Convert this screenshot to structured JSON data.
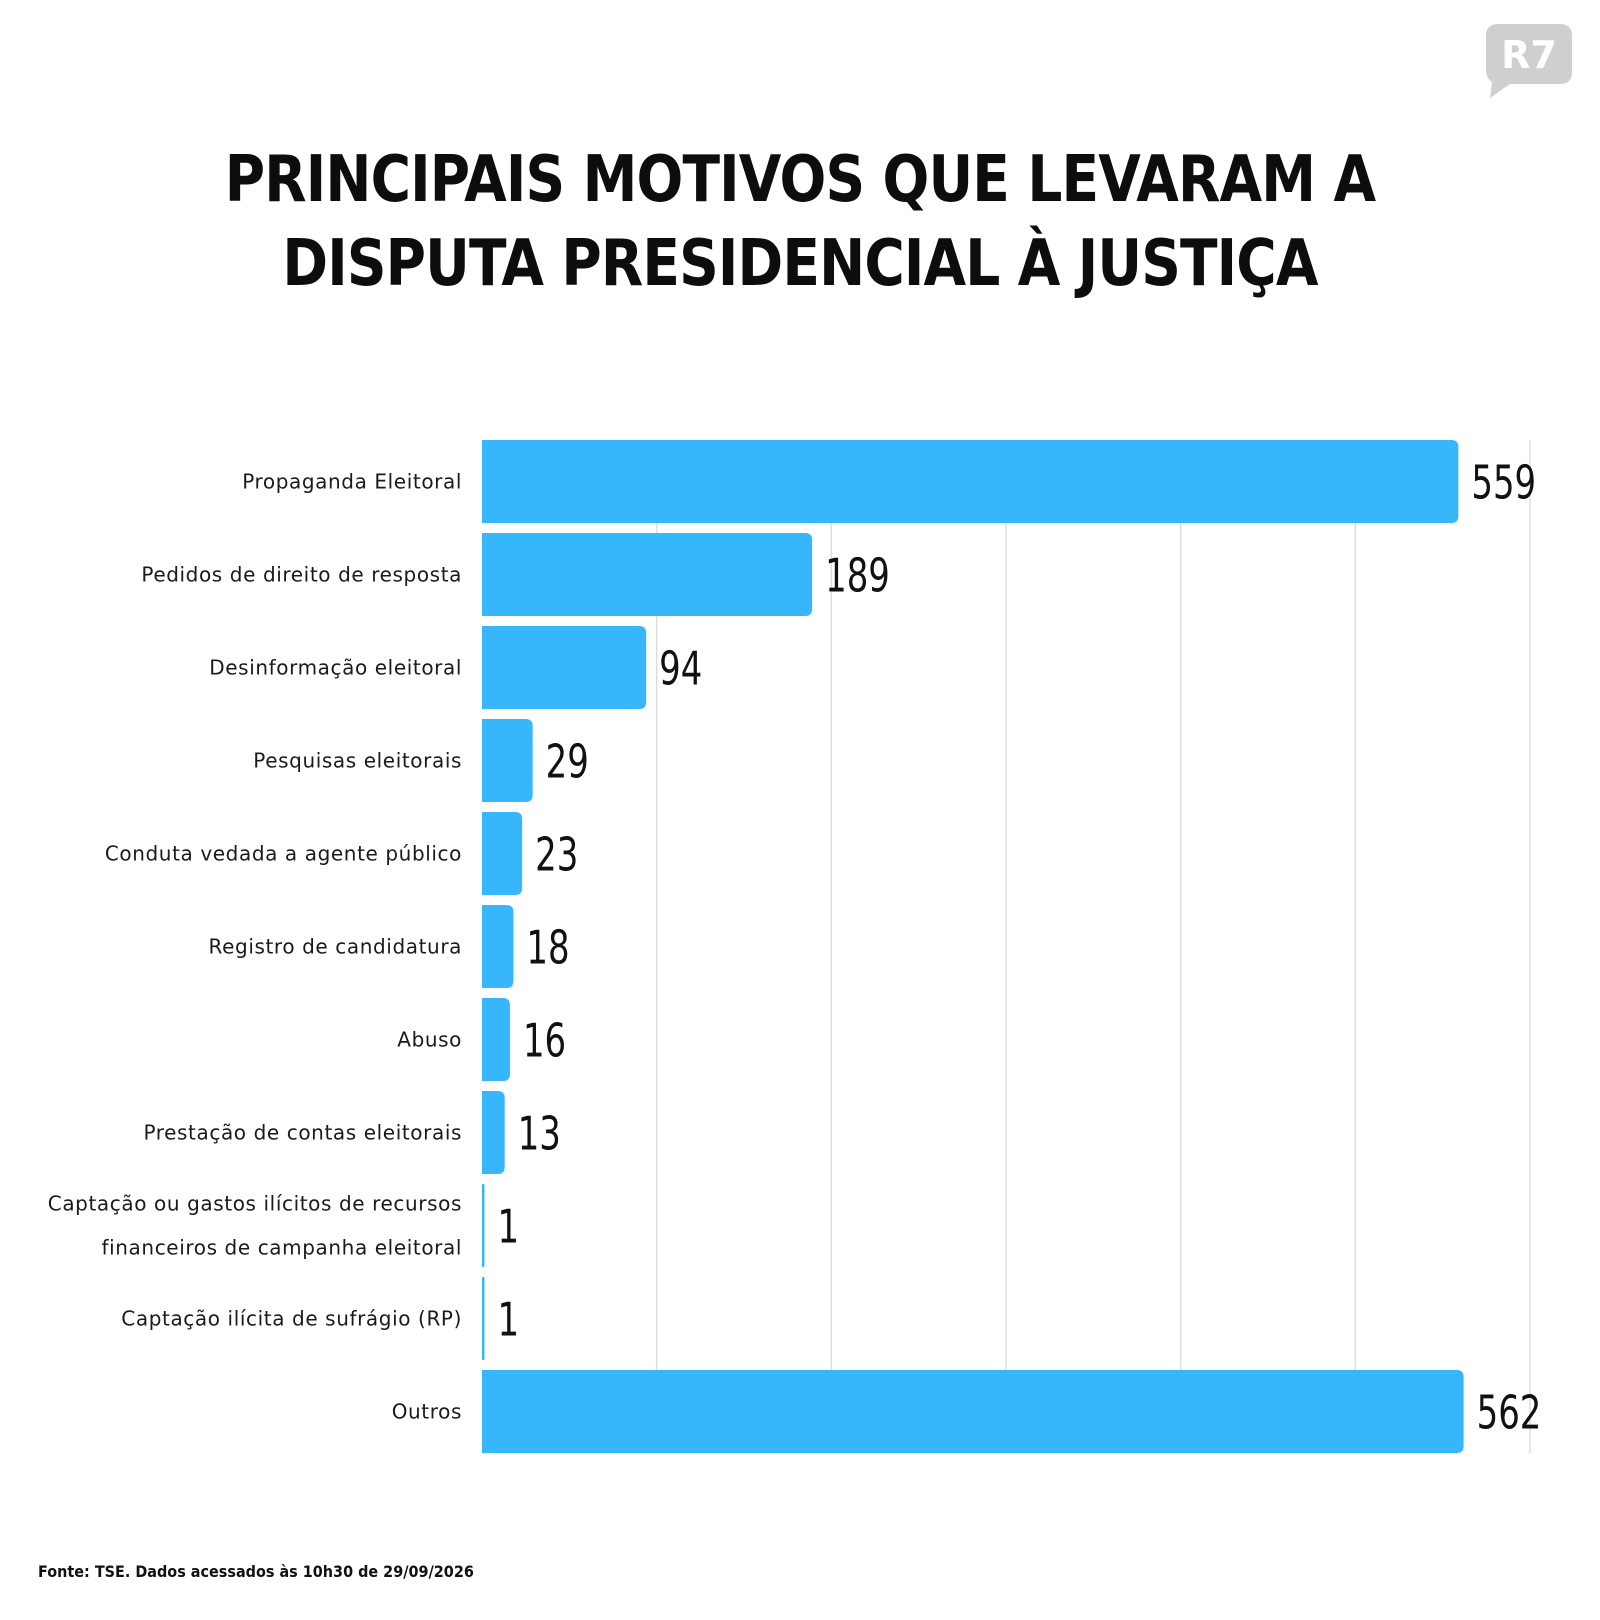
{
  "logo": {
    "text": "R7",
    "color": "#cfcfcf"
  },
  "title": {
    "line1": "PRINCIPAIS MOTIVOS QUE LEVARAM A",
    "line2": "DISPUTA PRESIDENCIAL À JUSTIÇA"
  },
  "chart_data": {
    "type": "bar",
    "orientation": "horizontal",
    "categories": [
      "Propaganda Eleitoral",
      "Pedidos de direito de resposta",
      "Desinformação eleitoral",
      "Pesquisas eleitorais",
      "Conduta vedada a agente público",
      "Registro de candidatura",
      "Abuso",
      "Prestação de contas eleitorais",
      "Captação ou gastos ilícitos de recursos financeiros de campanha eleitoral",
      "Captação ilícita de sufrágio (RP)",
      "Outros"
    ],
    "category_lines": [
      [
        "Propaganda Eleitoral"
      ],
      [
        "Pedidos de direito de resposta"
      ],
      [
        "Desinformação eleitoral"
      ],
      [
        "Pesquisas eleitorais"
      ],
      [
        "Conduta vedada a agente público"
      ],
      [
        "Registro de candidatura"
      ],
      [
        "Abuso"
      ],
      [
        "Prestação de contas eleitorais"
      ],
      [
        "Captação ou gastos ilícitos de recursos",
        "financeiros de campanha eleitoral"
      ],
      [
        "Captação ilícita de sufrágio (RP)"
      ],
      [
        "Outros"
      ]
    ],
    "values": [
      559,
      189,
      94,
      29,
      23,
      18,
      16,
      13,
      1,
      1,
      562
    ],
    "value_labels": [
      "559",
      "189",
      "94",
      "29",
      "23",
      "18",
      "16",
      "13",
      "1",
      "1",
      "562"
    ],
    "xlim": [
      0,
      600
    ],
    "gridlines": [
      100,
      200,
      300,
      400,
      500,
      600
    ],
    "grid": true,
    "bar_color": "#38b6fb",
    "grid_color": "#dedede",
    "title": "PRINCIPAIS MOTIVOS QUE LEVARAM A DISPUTA PRESIDENCIAL À JUSTIÇA",
    "xlabel": "",
    "ylabel": ""
  },
  "source": "Fonte: TSE. Dados acessados às 10h30 de 29/09/2026"
}
